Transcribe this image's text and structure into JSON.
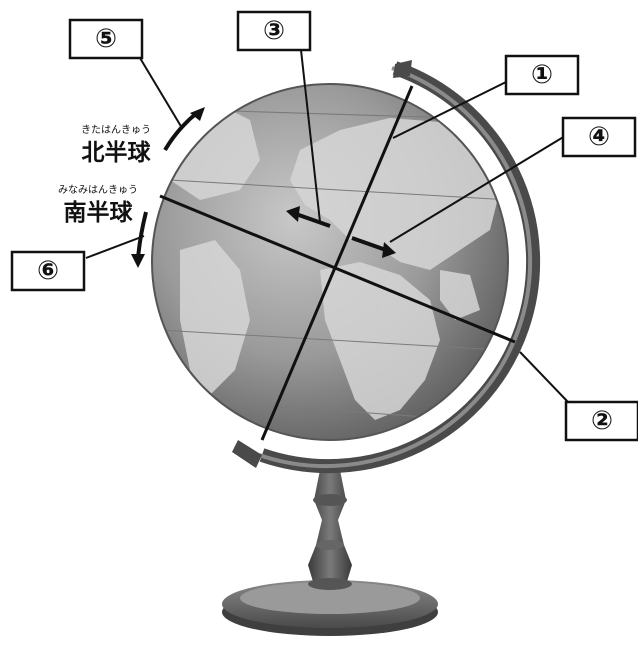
{
  "labels": [
    {
      "id": "label-1",
      "text": "①"
    },
    {
      "id": "label-2",
      "text": "②"
    },
    {
      "id": "label-3",
      "text": "③"
    },
    {
      "id": "label-4",
      "text": "④"
    },
    {
      "id": "label-5",
      "text": "⑤"
    },
    {
      "id": "label-6",
      "text": "⑥"
    }
  ],
  "northern_hemisphere": {
    "ruby": "きたはんきゅう",
    "text": "北半球"
  },
  "southern_hemisphere": {
    "ruby": "みなみはんきゅう",
    "text": "南半球"
  }
}
